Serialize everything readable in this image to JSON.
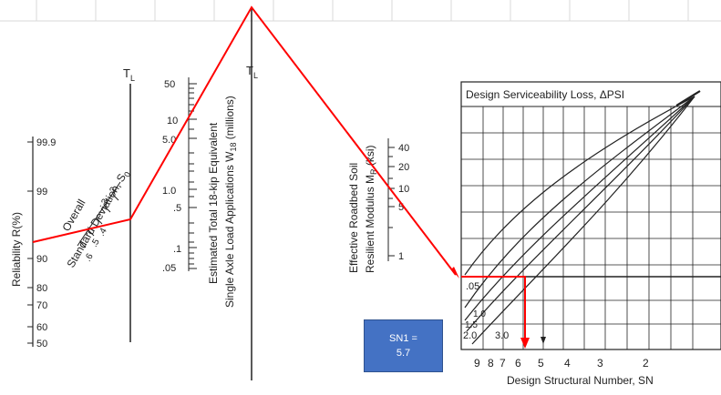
{
  "reliability": {
    "label": "Reliability R(%)",
    "ticks": [
      "99.9",
      "99",
      "90",
      "80",
      "70",
      "60",
      "50"
    ]
  },
  "std_dev": {
    "label_line1": "Overall",
    "label_line2": "Standard Deviation, S",
    "label_sub": "0",
    "ticks": [
      ".2",
      ".3",
      ".4",
      ".5",
      ".6"
    ]
  },
  "turning_line_left": {
    "label": "T",
    "sub": "L"
  },
  "traffic": {
    "label_line1": "Estimated Total 18-kip Equivalent",
    "label_line2": "Single Axle Load Applications W",
    "label_sub": "18",
    "label_tail": " (millions)",
    "ticks": [
      "50",
      "10",
      "5.0",
      "1.0",
      ".5",
      ".1",
      ".05"
    ]
  },
  "turning_line_right": {
    "label": "T",
    "sub": "L"
  },
  "soil": {
    "label_line1": "Effective Roadbed Soil",
    "label_line2": "Resilient Modulus M",
    "label_sub": "R",
    "label_tail": " (ksi)",
    "ticks": [
      "40",
      "20",
      "10",
      "5",
      "1"
    ]
  },
  "design_chart": {
    "title": "Design Serviceability Loss, ΔPSI",
    "psi_labels": [
      ".05",
      "1.0",
      "1.5",
      "2.0",
      "3.0"
    ],
    "sn_ticks": [
      "9",
      "8",
      "7",
      "6",
      "5",
      "4",
      "3",
      "2"
    ],
    "xlabel": "Design Structural Number, SN"
  },
  "result_box": {
    "line1": "SN1 =",
    "line2": "5.7",
    "color": "#4472c4"
  },
  "colors": {
    "path": "#ff0000",
    "axis": "#222222",
    "grid": "#d9d9d9"
  }
}
